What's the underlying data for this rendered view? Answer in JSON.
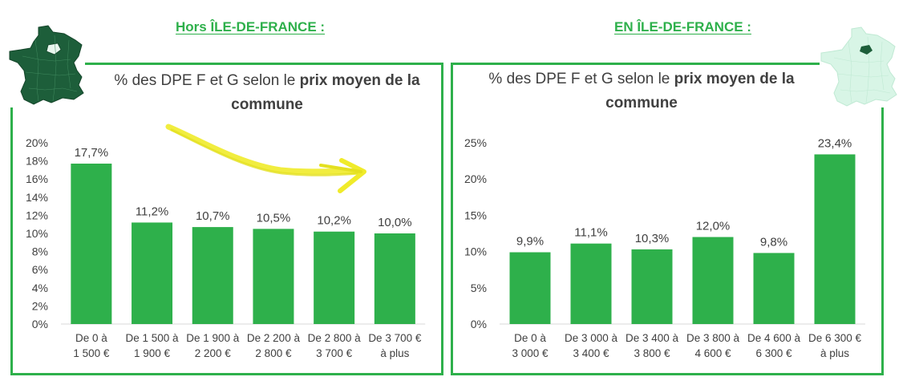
{
  "sections": {
    "left_title": "Hors ÎLE-DE-FRANCE :",
    "right_title": "EN ÎLE-DE-FRANCE :"
  },
  "colors": {
    "accent": "#2eb04b",
    "bar": "#2eb04b",
    "arrow": "#f0eb2a",
    "map_dark": "#1d5e3a",
    "map_light": "#d8f5e6"
  },
  "icons": {
    "left_map": "france-map-dark-icon",
    "right_map": "france-map-light-icon",
    "arrow": "hand-drawn-arrow-icon"
  },
  "chart_data": [
    {
      "type": "bar",
      "title_plain": "% des DPE F et G selon le ",
      "title_bold": "prix moyen de la commune",
      "categories": [
        [
          "De 0 à",
          "1 500 €"
        ],
        [
          "De 1 500 à",
          "1 900 €"
        ],
        [
          "De 1 900 à",
          "2 200 €"
        ],
        [
          "De 2 200 à",
          "2 800 €"
        ],
        [
          "De 2 800 à",
          "3 700 €"
        ],
        [
          "De 3 700 €",
          "à plus"
        ]
      ],
      "values": [
        17.7,
        11.2,
        10.7,
        10.5,
        10.2,
        10.0
      ],
      "data_labels": [
        "17,7%",
        "11,2%",
        "10,7%",
        "10,5%",
        "10,2%",
        "10,0%"
      ],
      "ylim": [
        0,
        20
      ],
      "y_ticks": [
        "0%",
        "2%",
        "4%",
        "6%",
        "8%",
        "10%",
        "12%",
        "14%",
        "16%",
        "18%",
        "20%"
      ],
      "y_tick_values": [
        0,
        2,
        4,
        6,
        8,
        10,
        12,
        14,
        16,
        18,
        20
      ],
      "grid": false
    },
    {
      "type": "bar",
      "title_plain": "% des DPE F et G selon le ",
      "title_bold": "prix moyen de la commune",
      "categories": [
        [
          "De 0 à",
          "3 000 €"
        ],
        [
          "De 3 000 à",
          "3 400 €"
        ],
        [
          "De 3 400 à",
          "3 800 €"
        ],
        [
          "De 3 800 à",
          "4 600 €"
        ],
        [
          "De 4 600 à",
          "6 300 €"
        ],
        [
          "De 6 300 €",
          "à plus"
        ]
      ],
      "values": [
        9.9,
        11.1,
        10.3,
        12.0,
        9.8,
        23.4
      ],
      "data_labels": [
        "9,9%",
        "11,1%",
        "10,3%",
        "12,0%",
        "9,8%",
        "23,4%"
      ],
      "ylim": [
        0,
        25
      ],
      "y_ticks": [
        "0%",
        "5%",
        "10%",
        "15%",
        "20%",
        "25%"
      ],
      "y_tick_values": [
        0,
        5,
        10,
        15,
        20,
        25
      ],
      "grid": false
    }
  ]
}
